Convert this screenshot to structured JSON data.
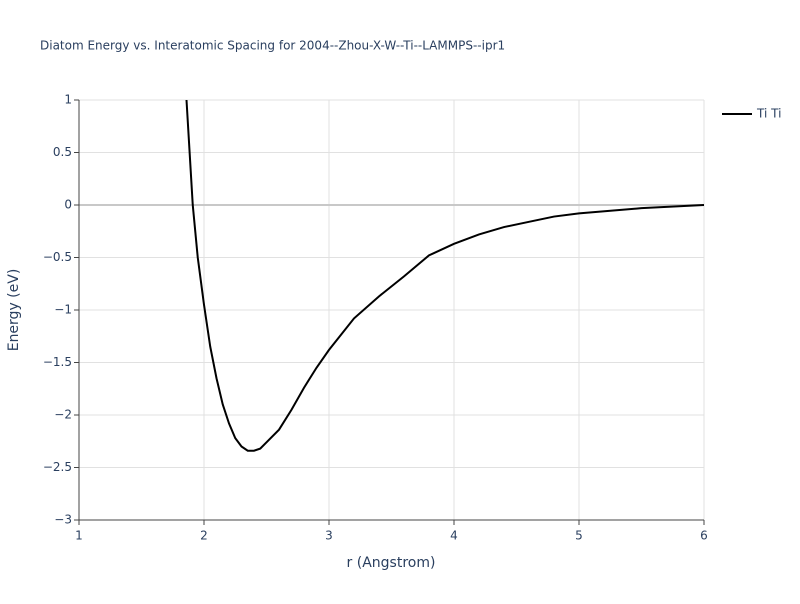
{
  "chart_data": {
    "type": "line",
    "title": "Diatom Energy vs. Interatomic Spacing for 2004--Zhou-X-W--Ti--LAMMPS--ipr1",
    "x_label": "r (Angstrom)",
    "y_label": "Energy (eV)",
    "x": [
      1.86,
      1.91,
      1.95,
      2.0,
      2.05,
      2.1,
      2.15,
      2.2,
      2.25,
      2.3,
      2.35,
      2.4,
      2.45,
      2.5,
      2.6,
      2.7,
      2.8,
      2.9,
      3.0,
      3.2,
      3.4,
      3.6,
      3.8,
      4.0,
      4.2,
      4.4,
      4.6,
      4.8,
      5.0,
      5.5,
      6.0
    ],
    "series": [
      {
        "name": "Ti Ti",
        "color": "#000000",
        "values": [
          1.0,
          0.0,
          -0.5,
          -0.95,
          -1.35,
          -1.65,
          -1.9,
          -2.08,
          -2.22,
          -2.3,
          -2.34,
          -2.34,
          -2.32,
          -2.26,
          -2.14,
          -1.95,
          -1.74,
          -1.55,
          -1.38,
          -1.08,
          -0.87,
          -0.68,
          -0.48,
          -0.37,
          -0.28,
          -0.21,
          -0.16,
          -0.11,
          -0.08,
          -0.03,
          0.0
        ]
      }
    ],
    "xlim": [
      1,
      6
    ],
    "xticks": [
      1,
      2,
      3,
      4,
      5,
      6
    ],
    "ylim": [
      -3,
      1
    ],
    "yticks": [
      {
        "value": -3,
        "label": "−3"
      },
      {
        "value": -2.5,
        "label": "−2.5"
      },
      {
        "value": -2,
        "label": "−2"
      },
      {
        "value": -1.5,
        "label": "−1.5"
      },
      {
        "value": -1,
        "label": "−1"
      },
      {
        "value": -0.5,
        "label": "−0.5"
      },
      0,
      0.5,
      1
    ],
    "grid": true,
    "legend": "right"
  }
}
